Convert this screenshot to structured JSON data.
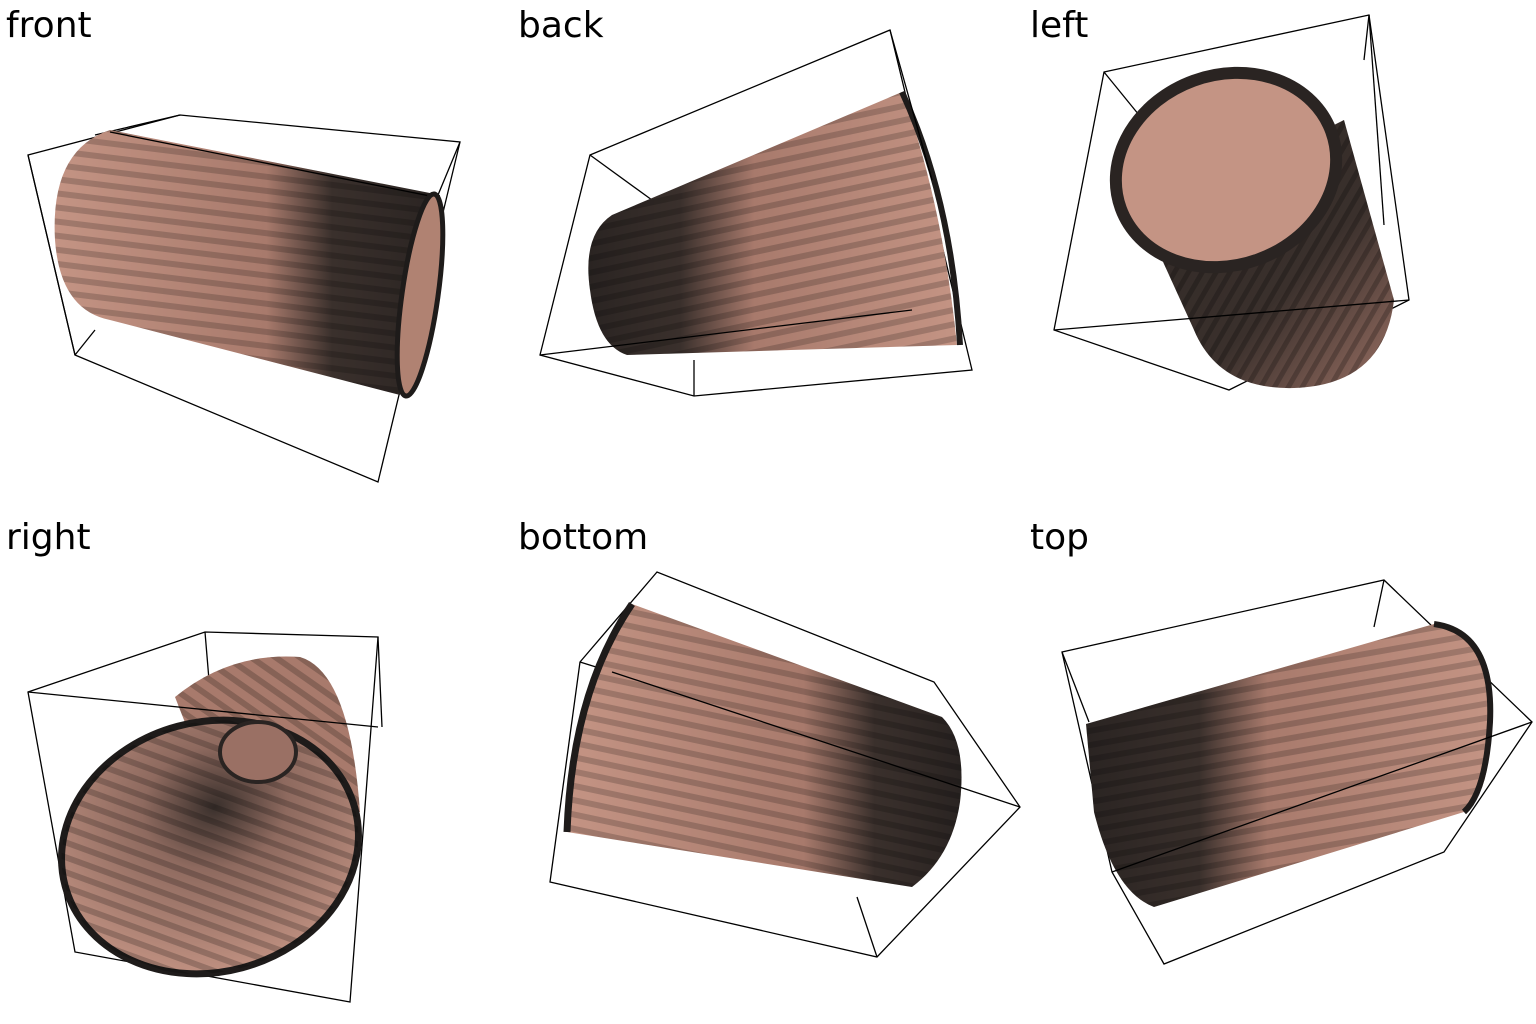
{
  "views": [
    {
      "label": "front"
    },
    {
      "label": "back"
    },
    {
      "label": "left"
    },
    {
      "label": "right"
    },
    {
      "label": "bottom"
    },
    {
      "label": "top"
    }
  ],
  "colors": {
    "object_light": "#c49484",
    "object_shadow": "#8e6a5f",
    "object_dark": "#2e2825",
    "rim": "#1e1b1a",
    "box_line": "#000000",
    "background": "#ffffff"
  }
}
